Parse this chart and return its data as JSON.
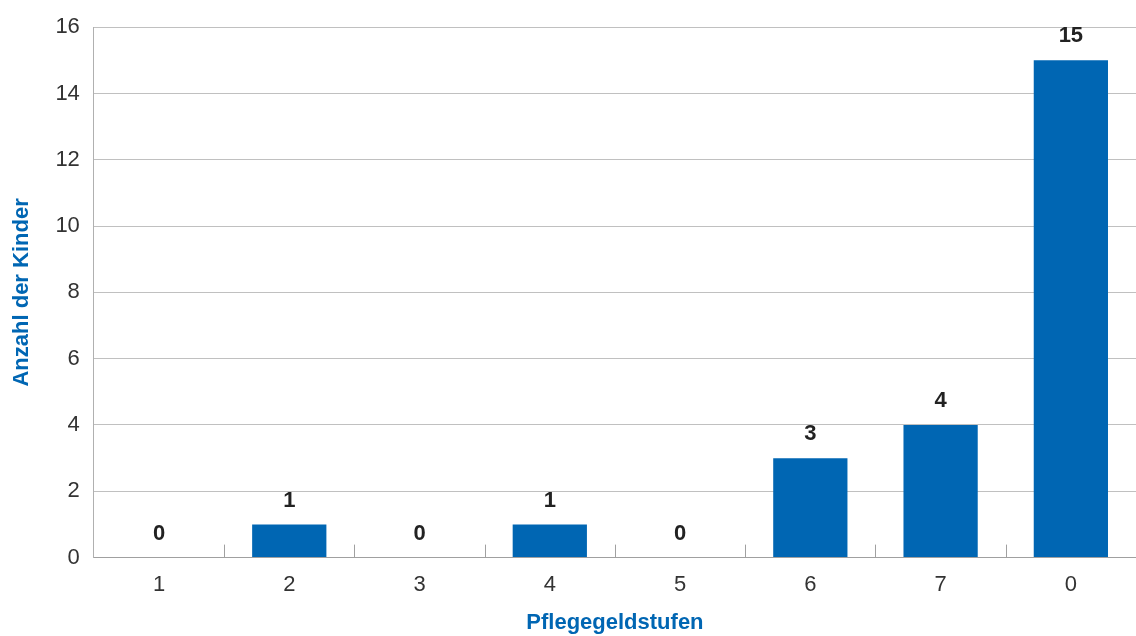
{
  "chart_data": {
    "type": "bar",
    "xlabel": "Pflegegeldstufen",
    "ylabel": "Anzahl der Kinder",
    "categories": [
      "1",
      "2",
      "3",
      "4",
      "5",
      "6",
      "7",
      "0"
    ],
    "values": [
      0,
      1,
      0,
      1,
      0,
      3,
      4,
      15
    ],
    "color": "#0066b3",
    "ylim": [
      0,
      16
    ],
    "yticks": [
      0,
      2,
      4,
      6,
      8,
      10,
      12,
      14,
      16
    ],
    "grid": "y",
    "data_labels": true
  }
}
